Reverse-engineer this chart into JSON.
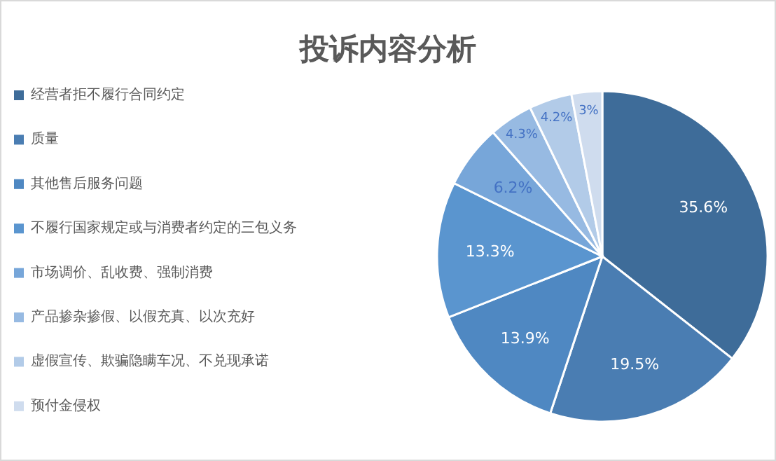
{
  "chart_data": {
    "type": "pie",
    "title": "投诉内容分析",
    "categories": [
      "经营者拒不履行合同约定",
      "质量",
      "其他售后服务问题",
      "不履行国家规定或与消费者约定的三包义务",
      "市场调价、乱收费、强制消费",
      "产品掺杂掺假、以假充真、以次充好",
      "虚假宣传、欺骗隐瞒车况、不兑现承诺",
      "预付金侵权"
    ],
    "values": [
      35.6,
      19.5,
      13.9,
      13.3,
      6.2,
      4.3,
      4.2,
      3
    ],
    "value_labels": [
      "35.6%",
      "19.5%",
      "13.9%",
      "13.3%",
      "6.2%",
      "4.3%",
      "4.2%",
      "3%"
    ],
    "colors": [
      "#3e6c99",
      "#4a7db2",
      "#4f88c2",
      "#5a95cf",
      "#77a6d9",
      "#97bae2",
      "#b2cbe8",
      "#cfdcee"
    ],
    "legend": "left"
  }
}
